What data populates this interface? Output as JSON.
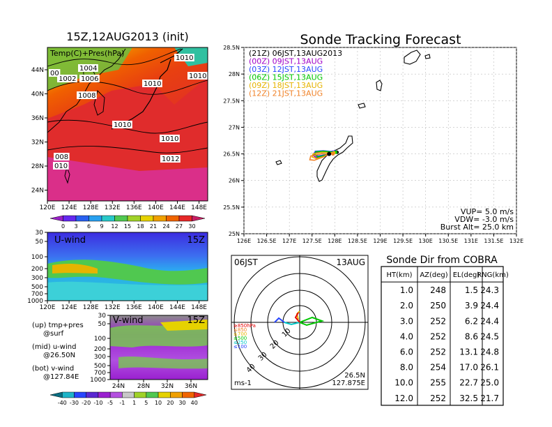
{
  "left_title": "15Z,12AUG2013 (init)",
  "main_title": "Sonde Tracking Forecast",
  "surface_map": {
    "label": "Temp(C)+Pres(hPa)",
    "lon_ticks": [
      "120E",
      "124E",
      "128E",
      "132E",
      "136E",
      "140E",
      "144E",
      "148E"
    ],
    "lat_ticks": [
      "44N",
      "40N",
      "36N",
      "32N",
      "28N",
      "24N"
    ],
    "isobars": [
      "1004",
      "1002",
      "1006",
      "1008",
      "1010",
      "1010",
      "1010",
      "1010",
      "1010",
      "1012",
      "008",
      "010",
      "00"
    ],
    "colorbar_ticks": [
      "0",
      "3",
      "6",
      "9",
      "12",
      "15",
      "18",
      "21",
      "24",
      "27",
      "30"
    ]
  },
  "u_wind": {
    "label": "U-wind",
    "time": "15Z",
    "y_ticks": [
      "30",
      "50",
      "100",
      "200",
      "300",
      "500",
      "700",
      "1000"
    ],
    "x_ticks": [
      "120E",
      "124E",
      "128E",
      "132E",
      "136E",
      "140E",
      "144E",
      "148E"
    ]
  },
  "v_wind": {
    "label": "V-wind",
    "time": "15Z",
    "y_ticks": [
      "30",
      "50",
      "100",
      "200",
      "300",
      "500",
      "700",
      "1000"
    ],
    "x_ticks": [
      "24N",
      "28N",
      "32N",
      "36N"
    ]
  },
  "legend_notes": [
    {
      "a": "(up) tmp+pres",
      "b": "@surf"
    },
    {
      "a": "(mid) u-wind",
      "b": "@26.50N"
    },
    {
      "a": "(bot) v-wind",
      "b": "@127.84E"
    }
  ],
  "wind_colorbar_ticks": [
    "-40",
    "-30",
    "-20",
    "-10",
    "-5",
    "-1",
    "1",
    "5",
    "10",
    "20",
    "30",
    "40"
  ],
  "track_legend": [
    {
      "text": "(21Z) 06JST,13AUG2013",
      "color": "#000000"
    },
    {
      "text": "(00Z) 09JST,13AUG",
      "color": "#a000c8"
    },
    {
      "text": "(03Z) 12JST,13AUG",
      "color": "#2846ff"
    },
    {
      "text": "(06Z) 15JST,13AUG",
      "color": "#00c800"
    },
    {
      "text": "(09Z) 18JST,13AUG",
      "color": "#e6b400"
    },
    {
      "text": "(12Z) 21JST,13AUG",
      "color": "#f08228"
    }
  ],
  "track_params": [
    "VUP= 5.0 m/s",
    "VDW= -3.0 m/s",
    "Burst Alt= 25.0 km"
  ],
  "polar": {
    "left_label": "06JST",
    "right_label": "13AUG",
    "position_lat": "26.5N",
    "position_lon": "127.875E",
    "units": "ms-1",
    "ring_labels": [
      "10",
      "20",
      "30",
      "40"
    ],
    "level_legend": [
      {
        "text": "≥850hPa",
        "color": "#e60000"
      },
      {
        "text": "≤850",
        "color": "#f08228"
      },
      {
        "text": "≤700",
        "color": "#e6b400"
      },
      {
        "text": "≤500",
        "color": "#00c800"
      },
      {
        "text": "≤250",
        "color": "#00c8c8"
      },
      {
        "text": "≤100",
        "color": "#2846ff"
      }
    ]
  },
  "table_title": "Sonde Dir from COBRA",
  "table": {
    "headers": [
      "HT(km)",
      "AZ(deg)",
      "EL(deg)",
      "RNG(km)"
    ],
    "rows": [
      [
        "1.0",
        "248",
        "1.5",
        "24.3"
      ],
      [
        "2.0",
        "250",
        "3.9",
        "24.4"
      ],
      [
        "3.0",
        "252",
        "6.2",
        "24.4"
      ],
      [
        "4.0",
        "252",
        "8.6",
        "24.5"
      ],
      [
        "6.0",
        "252",
        "13.1",
        "24.8"
      ],
      [
        "8.0",
        "254",
        "17.0",
        "26.1"
      ],
      [
        "10.0",
        "255",
        "22.7",
        "25.0"
      ],
      [
        "12.0",
        "252",
        "32.5",
        "21.7"
      ]
    ]
  },
  "chart_data": {
    "type": "line",
    "title": "Sonde Tracking Forecast",
    "xlim": [
      126,
      132
    ],
    "ylim": [
      25,
      28.5
    ],
    "x_ticks": [
      "126E",
      "126.5E",
      "127E",
      "127.5E",
      "128E",
      "128.5E",
      "129E",
      "129.5E",
      "130E",
      "130.5E",
      "131E",
      "131.5E",
      "132E"
    ],
    "y_ticks": [
      "25N",
      "25.5N",
      "26N",
      "26.5N",
      "27N",
      "27.5N",
      "28N",
      "28.5N"
    ],
    "launch": {
      "lon": 127.875,
      "lat": 26.5
    },
    "series": [
      {
        "name": "(21Z) 06JST,13AUG2013",
        "color": "#000000",
        "lon": [
          127.875,
          127.8,
          127.65,
          127.55,
          127.6,
          127.8,
          128.05
        ],
        "lat": [
          26.5,
          26.47,
          26.45,
          26.48,
          26.52,
          26.53,
          26.53
        ]
      },
      {
        "name": "(00Z) 09JST,13AUG",
        "color": "#a000c8",
        "lon": [
          127.875,
          127.75,
          127.6,
          127.52,
          127.55,
          127.7,
          127.95
        ],
        "lat": [
          26.5,
          26.46,
          26.43,
          26.47,
          26.52,
          26.54,
          26.53
        ]
      },
      {
        "name": "(03Z) 12JST,13AUG",
        "color": "#2846ff",
        "lon": [
          127.875,
          127.78,
          127.63,
          127.55,
          127.57,
          127.75,
          128.0
        ],
        "lat": [
          26.5,
          26.48,
          26.46,
          26.5,
          26.55,
          26.56,
          26.54
        ]
      },
      {
        "name": "(06Z) 15JST,13AUG",
        "color": "#00c800",
        "lon": [
          127.875,
          127.77,
          127.62,
          127.56,
          127.58,
          127.77,
          128.02
        ],
        "lat": [
          26.5,
          26.47,
          26.44,
          26.49,
          26.54,
          26.55,
          26.53
        ]
      },
      {
        "name": "(09Z) 18JST,13AUG",
        "color": "#e6b400",
        "lon": [
          127.875,
          127.76,
          127.6,
          127.5,
          127.52,
          127.72,
          127.98
        ],
        "lat": [
          26.5,
          26.45,
          26.41,
          26.44,
          26.5,
          26.53,
          26.52
        ]
      },
      {
        "name": "(12Z) 21JST,13AUG",
        "color": "#f08228",
        "lon": [
          127.875,
          127.74,
          127.55,
          127.45,
          127.47,
          127.7,
          127.96
        ],
        "lat": [
          26.5,
          26.44,
          26.38,
          26.39,
          26.46,
          26.5,
          26.5
        ]
      }
    ]
  }
}
